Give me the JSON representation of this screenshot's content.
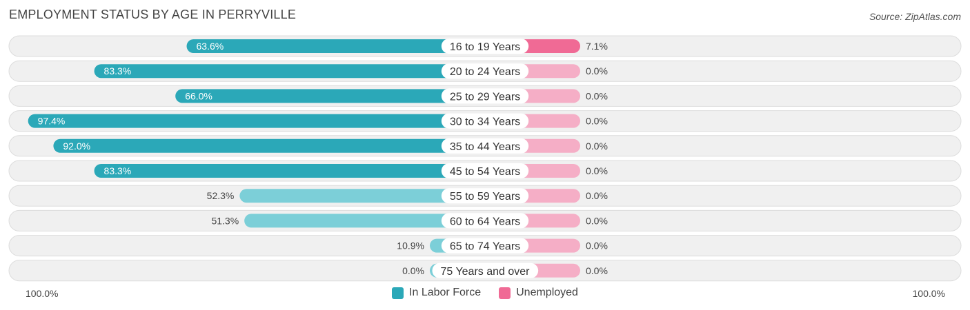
{
  "title": "EMPLOYMENT STATUS BY AGE IN PERRYVILLE",
  "source": "Source: ZipAtlas.com",
  "axis": {
    "left_label": "100.0%",
    "right_label": "100.0%"
  },
  "legend": [
    {
      "label": "In Labor Force",
      "color": "#2ba8b8"
    },
    {
      "label": "Unemployed",
      "color": "#f06a95"
    }
  ],
  "colors": {
    "labor_dark": "#2ba8b8",
    "labor_light": "#7ccfd8",
    "unemployed_dark": "#f06a95",
    "unemployed_light": "#f5aec6",
    "row_bg": "#f0f0f0",
    "row_border": "#dcdcdc"
  },
  "chart_data": {
    "type": "bar",
    "orientation": "diverging-horizontal",
    "categories": [
      "16 to 19 Years",
      "20 to 24 Years",
      "25 to 29 Years",
      "30 to 34 Years",
      "35 to 44 Years",
      "45 to 54 Years",
      "55 to 59 Years",
      "60 to 64 Years",
      "65 to 74 Years",
      "75 Years and over"
    ],
    "series": [
      {
        "name": "In Labor Force",
        "values": [
          63.6,
          83.3,
          66.0,
          97.4,
          92.0,
          83.3,
          52.3,
          51.3,
          10.9,
          0.0
        ]
      },
      {
        "name": "Unemployed",
        "values": [
          7.1,
          0.0,
          0.0,
          0.0,
          0.0,
          0.0,
          0.0,
          0.0,
          0.0,
          0.0
        ]
      }
    ],
    "value_labels_left": [
      "63.6%",
      "83.3%",
      "66.0%",
      "97.4%",
      "92.0%",
      "83.3%",
      "52.3%",
      "51.3%",
      "10.9%",
      "0.0%"
    ],
    "value_labels_right": [
      "7.1%",
      "0.0%",
      "0.0%",
      "0.0%",
      "0.0%",
      "0.0%",
      "0.0%",
      "0.0%",
      "0.0%",
      "0.0%"
    ],
    "xlim": [
      0,
      100
    ],
    "legend_position": "bottom-center"
  }
}
